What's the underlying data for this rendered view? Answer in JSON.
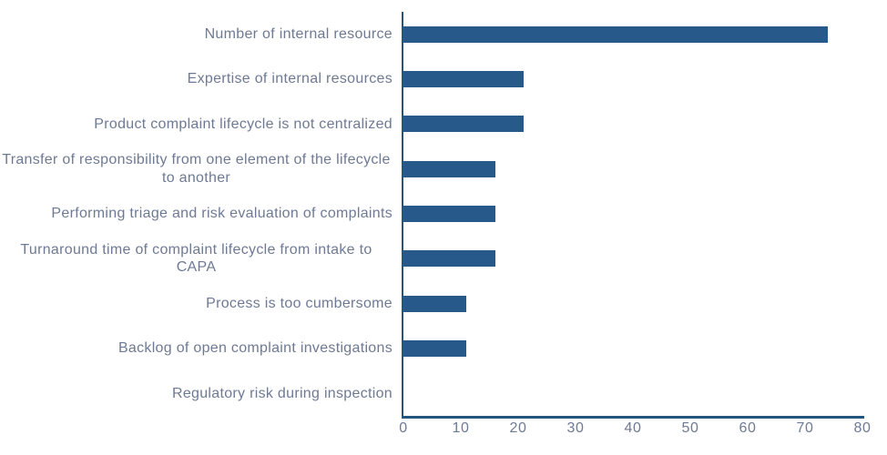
{
  "chart_data": {
    "type": "bar",
    "orientation": "horizontal",
    "title": "",
    "xlabel": "",
    "ylabel": "",
    "categories": [
      "Number of internal resource",
      "Expertise of internal resources",
      "Product complaint lifecycle is not centralized",
      "Transfer of responsibility from one element of the lifecycle to another",
      "Performing triage and risk evaluation of complaints",
      "Turnaround time of complaint lifecycle from intake to CAPA",
      "Process is too cumbersome",
      "Backlog of open complaint investigations",
      "Regulatory risk during inspection"
    ],
    "values": [
      74,
      21,
      21,
      16,
      16,
      16,
      11,
      11,
      0
    ],
    "xlim": [
      0,
      80
    ],
    "x_ticks": [
      0,
      10,
      20,
      30,
      40,
      50,
      60,
      70,
      80
    ],
    "grid": false,
    "legend": false,
    "colors": {
      "bar": "#275a8b",
      "axis": "#24557f",
      "label": "#6e7a94",
      "background": "#ffffff"
    }
  }
}
